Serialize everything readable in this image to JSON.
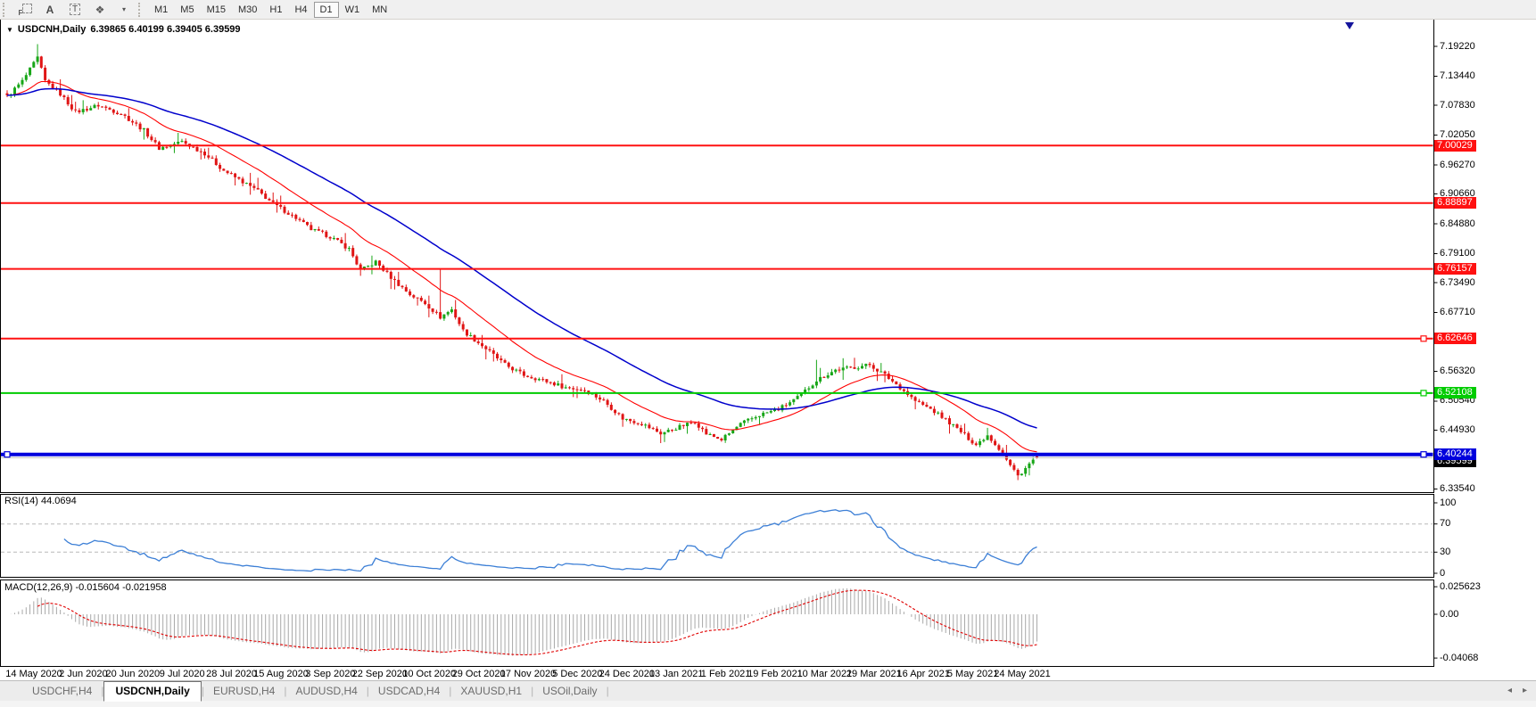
{
  "toolbar": {
    "tools": [
      {
        "name": "selection-f-icon",
        "glyph": "F"
      },
      {
        "name": "text-label-icon",
        "glyph": "A"
      },
      {
        "name": "text-box-icon",
        "glyph": "T"
      },
      {
        "name": "cursor-arrows-icon",
        "glyph": "❖"
      }
    ],
    "dropdown_caret": "▾",
    "timeframes": [
      {
        "label": "M1"
      },
      {
        "label": "M5"
      },
      {
        "label": "M15"
      },
      {
        "label": "M30"
      },
      {
        "label": "H1"
      },
      {
        "label": "H4"
      },
      {
        "label": "D1",
        "active": true
      },
      {
        "label": "W1"
      },
      {
        "label": "MN"
      }
    ]
  },
  "chart": {
    "dropdown_icon": "▼",
    "symbol_title": "USDCNH,Daily",
    "ohlc_text": "6.39865 6.40199 6.39405 6.39599"
  },
  "chart_data": {
    "type": "candlestick",
    "title": "USDCNH,Daily",
    "last_bar_ohlc": [
      6.39865,
      6.40199,
      6.39405,
      6.39599
    ],
    "bars_total": 272,
    "ylim": [
      6.3285,
      7.2449
    ],
    "price_axis_ticks": [
      "7.19220",
      "7.13440",
      "7.07830",
      "7.02050",
      "6.96270",
      "6.90660",
      "6.84880",
      "6.79100",
      "6.73490",
      "6.67710",
      "6.56320",
      "6.50540",
      "6.44930",
      "6.33540"
    ],
    "hlines": [
      {
        "text": "7.00029",
        "value": 7.00029,
        "color": "red"
      },
      {
        "text": "6.88897",
        "value": 6.88897,
        "color": "red"
      },
      {
        "text": "6.76157",
        "value": 6.76157,
        "color": "red"
      },
      {
        "text": "6.62646",
        "value": 6.62646,
        "color": "red",
        "selected": true
      },
      {
        "text": "6.52108",
        "value": 6.52108,
        "color": "green",
        "selected": true
      },
      {
        "text": "6.40244",
        "value": 6.40244,
        "color": "blue",
        "selected": true,
        "thick": true
      }
    ],
    "current_price": {
      "text": "6.39599",
      "value": 6.39599
    },
    "date_labels": [
      "14 May 2020",
      "2 Jun 2020",
      "20 Jun 2020",
      "9 Jul 2020",
      "28 Jul 2020",
      "15 Aug 2020",
      "3 Sep 2020",
      "22 Sep 2020",
      "10 Oct 2020",
      "29 Oct 2020",
      "17 Nov 2020",
      "5 Dec 2020",
      "24 Dec 2020",
      "13 Jan 2021",
      "1 Feb 2021",
      "19 Feb 2021",
      "10 Mar 2021",
      "29 Mar 2021",
      "16 Apr 2021",
      "5 May 2021",
      "24 May 2021"
    ],
    "price_anchors": [
      [
        0,
        7.095
      ],
      [
        4,
        7.125
      ],
      [
        8,
        7.17
      ],
      [
        10,
        7.125
      ],
      [
        14,
        7.1
      ],
      [
        18,
        7.065
      ],
      [
        24,
        7.078
      ],
      [
        30,
        7.062
      ],
      [
        36,
        7.03
      ],
      [
        40,
        6.995
      ],
      [
        46,
        7.008
      ],
      [
        52,
        6.985
      ],
      [
        57,
        6.952
      ],
      [
        62,
        6.93
      ],
      [
        66,
        6.912
      ],
      [
        70,
        6.888
      ],
      [
        76,
        6.86
      ],
      [
        80,
        6.838
      ],
      [
        85,
        6.824
      ],
      [
        90,
        6.8
      ],
      [
        93,
        6.758
      ],
      [
        97,
        6.775
      ],
      [
        101,
        6.745
      ],
      [
        106,
        6.712
      ],
      [
        110,
        6.695
      ],
      [
        114,
        6.668
      ],
      [
        117,
        6.683
      ],
      [
        120,
        6.642
      ],
      [
        126,
        6.607
      ],
      [
        131,
        6.576
      ],
      [
        136,
        6.556
      ],
      [
        141,
        6.546
      ],
      [
        147,
        6.532
      ],
      [
        152,
        6.527
      ],
      [
        157,
        6.506
      ],
      [
        162,
        6.472
      ],
      [
        167,
        6.462
      ],
      [
        172,
        6.443
      ],
      [
        177,
        6.456
      ],
      [
        181,
        6.466
      ],
      [
        184,
        6.442
      ],
      [
        188,
        6.431
      ],
      [
        193,
        6.461
      ],
      [
        198,
        6.479
      ],
      [
        203,
        6.49
      ],
      [
        208,
        6.512
      ],
      [
        213,
        6.546
      ],
      [
        218,
        6.566
      ],
      [
        223,
        6.571
      ],
      [
        227,
        6.576
      ],
      [
        231,
        6.556
      ],
      [
        235,
        6.532
      ],
      [
        239,
        6.506
      ],
      [
        243,
        6.49
      ],
      [
        247,
        6.47
      ],
      [
        251,
        6.446
      ],
      [
        255,
        6.421
      ],
      [
        258,
        6.44
      ],
      [
        261,
        6.414
      ],
      [
        264,
        6.381
      ],
      [
        266,
        6.361
      ],
      [
        268,
        6.376
      ],
      [
        270,
        6.391
      ],
      [
        271,
        6.396
      ]
    ],
    "wick_events": [
      {
        "bar": 8,
        "high": 7.1965
      },
      {
        "bar": 93,
        "low": 6.7481
      },
      {
        "bar": 114,
        "high": 6.7625
      },
      {
        "bar": 213,
        "high": 6.5855
      },
      {
        "bar": 266,
        "low": 6.3526
      }
    ],
    "ma_fast_period": 20,
    "ma_slow_period": 55,
    "rsi": {
      "label": "RSI(14) 44.0694",
      "period": 14,
      "current": 44.0694,
      "scale": [
        {
          "text": "100",
          "value": 100
        },
        {
          "text": "70",
          "value": 70,
          "dashed": true
        },
        {
          "text": "30",
          "value": 30,
          "dashed": true
        },
        {
          "text": "0",
          "value": 0
        }
      ]
    },
    "macd": {
      "label": "MACD(12,26,9) -0.015604 -0.021958",
      "fast": 12,
      "slow": 26,
      "signal": 9,
      "scale": [
        {
          "text": "0.025623",
          "value": 0.025623
        },
        {
          "text": "0.00",
          "value": 0
        },
        {
          "text": "-0.04068",
          "value": -0.04068
        }
      ]
    },
    "colors": {
      "up": "#17a617",
      "down": "#e01515",
      "ma_fast": "#ff0000",
      "ma_slow": "#0000cc",
      "rsi": "#3c7fd6",
      "rsi_level": "#b8b8b8",
      "macd_hist": "#a8a8a8",
      "macd_signal": "#e00000",
      "red": "#ff1111",
      "green": "#00cc00",
      "blue": "#0000dd",
      "bid_line": "#c0c0c0",
      "current_chip": "#000000"
    }
  },
  "bottom": {
    "tabs": [
      {
        "label": "USDCHF,H4"
      },
      {
        "label": "USDCNH,Daily",
        "active": true
      },
      {
        "label": "EURUSD,H4"
      },
      {
        "label": "AUDUSD,H4"
      },
      {
        "label": "USDCAD,H4"
      },
      {
        "label": "XAUUSD,H1"
      },
      {
        "label": "USOil,Daily"
      }
    ],
    "separator": "|",
    "left_arrow": "◂",
    "right_arrow": "▸"
  }
}
